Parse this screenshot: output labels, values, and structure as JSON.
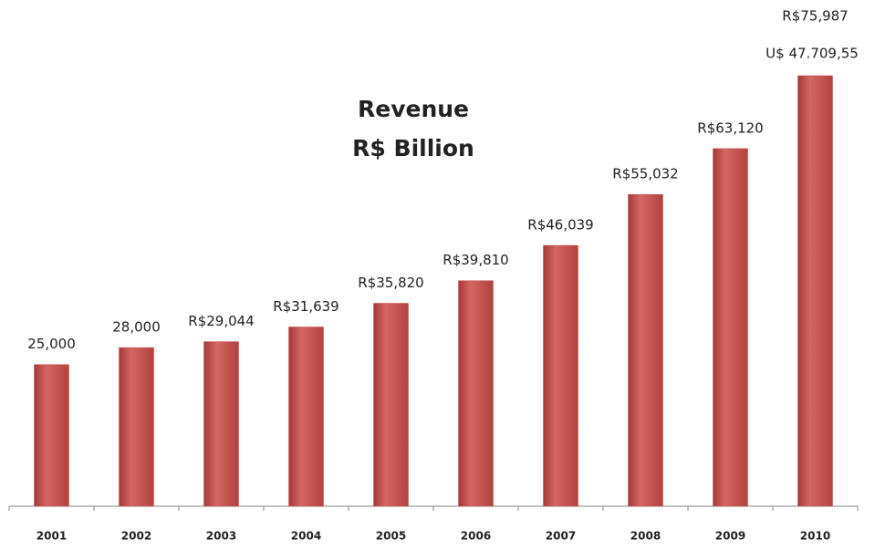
{
  "chart_data": {
    "type": "bar",
    "title": "Revenue",
    "subtitle": "R$ Billion",
    "categories": [
      "2001",
      "2002",
      "2003",
      "2004",
      "2005",
      "2006",
      "2007",
      "2008",
      "2009",
      "2010"
    ],
    "values": [
      25000,
      28000,
      29044,
      31639,
      35820,
      39810,
      46039,
      55032,
      63120,
      75987
    ],
    "value_labels": [
      "25,000",
      "28,000",
      "R$29,044",
      "R$31,639",
      "R$35,820",
      "R$39,810",
      "R$46,039",
      "R$55,032",
      "R$63,120",
      "R$75,987"
    ],
    "annotation": "U$ 47.709,55",
    "color": "#c0504d"
  }
}
